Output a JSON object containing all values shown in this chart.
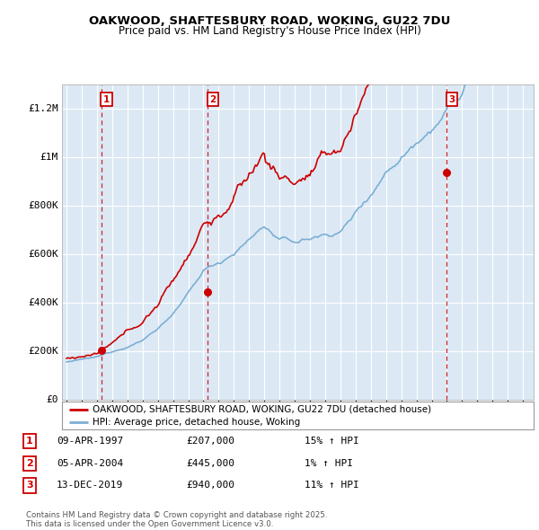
{
  "title1": "OAKWOOD, SHAFTESBURY ROAD, WOKING, GU22 7DU",
  "title2": "Price paid vs. HM Land Registry's House Price Index (HPI)",
  "legend_line1": "OAKWOOD, SHAFTESBURY ROAD, WOKING, GU22 7DU (detached house)",
  "legend_line2": "HPI: Average price, detached house, Woking",
  "plot_bg_color": "#dce9f5",
  "grid_color": "#ffffff",
  "red_line_color": "#cc0000",
  "blue_line_color": "#7bafd4",
  "vline_color": "#cc0000",
  "marker_color": "#cc0000",
  "sale_dates": [
    1997.27,
    2004.26,
    2019.95
  ],
  "sale_prices": [
    207000,
    445000,
    940000
  ],
  "sale_labels": [
    "1",
    "2",
    "3"
  ],
  "sale_info": [
    {
      "label": "1",
      "date": "09-APR-1997",
      "price": "£207,000",
      "hpi": "15% ↑ HPI"
    },
    {
      "label": "2",
      "date": "05-APR-2004",
      "price": "£445,000",
      "hpi": "1% ↑ HPI"
    },
    {
      "label": "3",
      "date": "13-DEC-2019",
      "price": "£940,000",
      "hpi": "11% ↑ HPI"
    }
  ],
  "footer": "Contains HM Land Registry data © Crown copyright and database right 2025.\nThis data is licensed under the Open Government Licence v3.0.",
  "ylim": [
    0,
    1300000
  ],
  "xlim_start": 1994.7,
  "xlim_end": 2025.7,
  "yticks": [
    0,
    200000,
    400000,
    600000,
    800000,
    1000000,
    1200000
  ],
  "ytick_labels": [
    "£0",
    "£200K",
    "£400K",
    "£600K",
    "£800K",
    "£1M",
    "£1.2M"
  ]
}
